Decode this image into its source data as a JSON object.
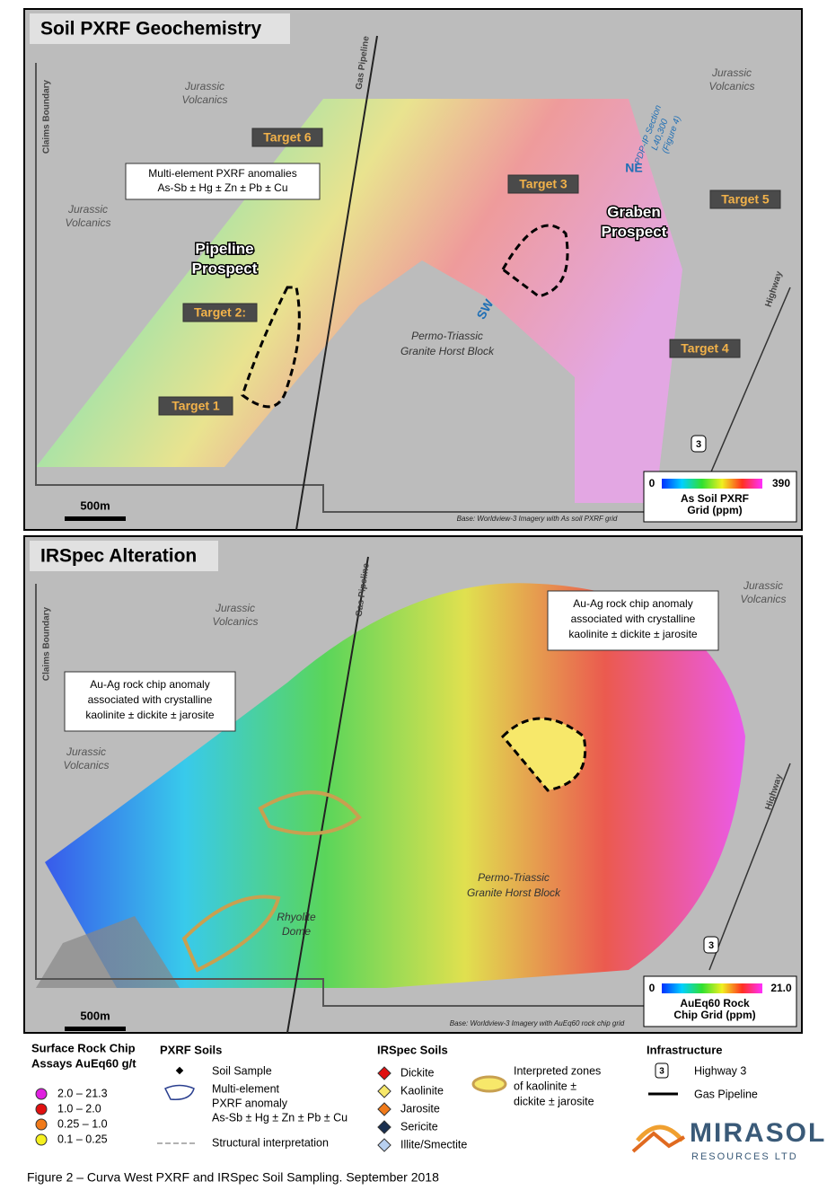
{
  "top_map": {
    "title": "Soil PXRF Geochemistry",
    "claims_boundary": "Claims Boundary",
    "pipeline": "Gas Pipeline",
    "volcanics": [
      [
        "Jurassic",
        "Volcanics"
      ],
      [
        "Jurassic",
        "Volcanics"
      ],
      [
        "Jurassic",
        "Volcanics"
      ]
    ],
    "targets": [
      "Target 6",
      "Target 3",
      "Target 5",
      "Target 2:",
      "Target 1",
      "Target 4"
    ],
    "callout": [
      "Multi-element PXRF anomalies",
      "As-Sb ± Hg ± Zn ± Pb ± Cu"
    ],
    "prospects": [
      [
        "Pipeline",
        "Prospect"
      ],
      [
        "Graben",
        "Prospect"
      ]
    ],
    "section": [
      "PDP-IP Section",
      "L40,300",
      "(Figure 4)"
    ],
    "section_ends": [
      "NE",
      "SW"
    ],
    "horst": [
      "Permo-Triassic",
      "Granite Horst Block"
    ],
    "highway": "Highway",
    "highway_number": "3",
    "scale_bar": "500m",
    "colorbar": {
      "min": "0",
      "max": "390",
      "title": [
        "As Soil PXRF",
        "Grid (ppm)"
      ]
    },
    "base_note": "Base: Worldview-3 Imagery with As soil PXRF grid"
  },
  "bottom_map": {
    "title": "IRSpec Alteration",
    "claims_boundary": "Claims Boundary",
    "pipeline": "Gas Pipeline",
    "volcanics": [
      [
        "Jurassic",
        "Volcanics"
      ],
      [
        "Jurassic",
        "Volcanics"
      ],
      [
        "Jurassic",
        "Volcanics"
      ]
    ],
    "callouts": [
      [
        "Au-Ag rock chip anomaly",
        "associated with crystalline",
        "kaolinite ± dickite ± jarosite"
      ],
      [
        "Au-Ag rock chip anomaly",
        "associated with crystalline",
        "kaolinite ± dickite ± jarosite"
      ]
    ],
    "horst": [
      "Permo-Triassic",
      "Granite Horst Block"
    ],
    "rhyolite": [
      "Rhyolite",
      "Dome"
    ],
    "highway": "Highway",
    "highway_number": "3",
    "scale_bar": "500m",
    "colorbar": {
      "min": "0",
      "max": "21.0",
      "title": [
        "AuEq60 Rock",
        "Chip Grid (ppm)"
      ]
    },
    "base_note": "Base: Worldview-3 Imagery with AuEq60 rock chip grid"
  },
  "legend": {
    "rock_chips": {
      "title": [
        "Surface Rock Chip",
        "Assays AuEq60 g/t"
      ],
      "items": [
        {
          "label": "2.0 – 21.3",
          "color": "#e020e0"
        },
        {
          "label": "1.0 – 2.0",
          "color": "#e01010"
        },
        {
          "label": "0.25 – 1.0",
          "color": "#f07a1a"
        },
        {
          "label": "0.1 – 0.25",
          "color": "#f5f020"
        }
      ]
    },
    "pxrf": {
      "title": "PXRF Soils",
      "soil_sample": "Soil Sample",
      "anomaly": [
        "Multi-element",
        "PXRF anomaly",
        "As-Sb ± Hg ± Zn ± Pb ± Cu"
      ],
      "structural": "Structural interpretation"
    },
    "irspec": {
      "title": "IRSpec Soils",
      "items": [
        {
          "label": "Dickite",
          "color": "#e01010"
        },
        {
          "label": "Kaolinite",
          "color": "#f7e86a"
        },
        {
          "label": "Jarosite",
          "color": "#f07a1a"
        },
        {
          "label": "Sericite",
          "color": "#1a3050"
        },
        {
          "label": "Illite/Smectite",
          "color": "#b8d0f0"
        }
      ]
    },
    "zones": [
      "Interpreted zones",
      "of kaolinite ±",
      "dickite ± jarosite"
    ],
    "infrastructure": {
      "title": "Infrastructure",
      "shield": "3",
      "highway": "Highway 3",
      "pipeline": "Gas Pipeline"
    },
    "logo": [
      "MIRASOL",
      "RESOURCES LTD"
    ]
  },
  "caption": "Figure 2 – Curva West PXRF and IRSpec Soil Sampling. September 2018"
}
